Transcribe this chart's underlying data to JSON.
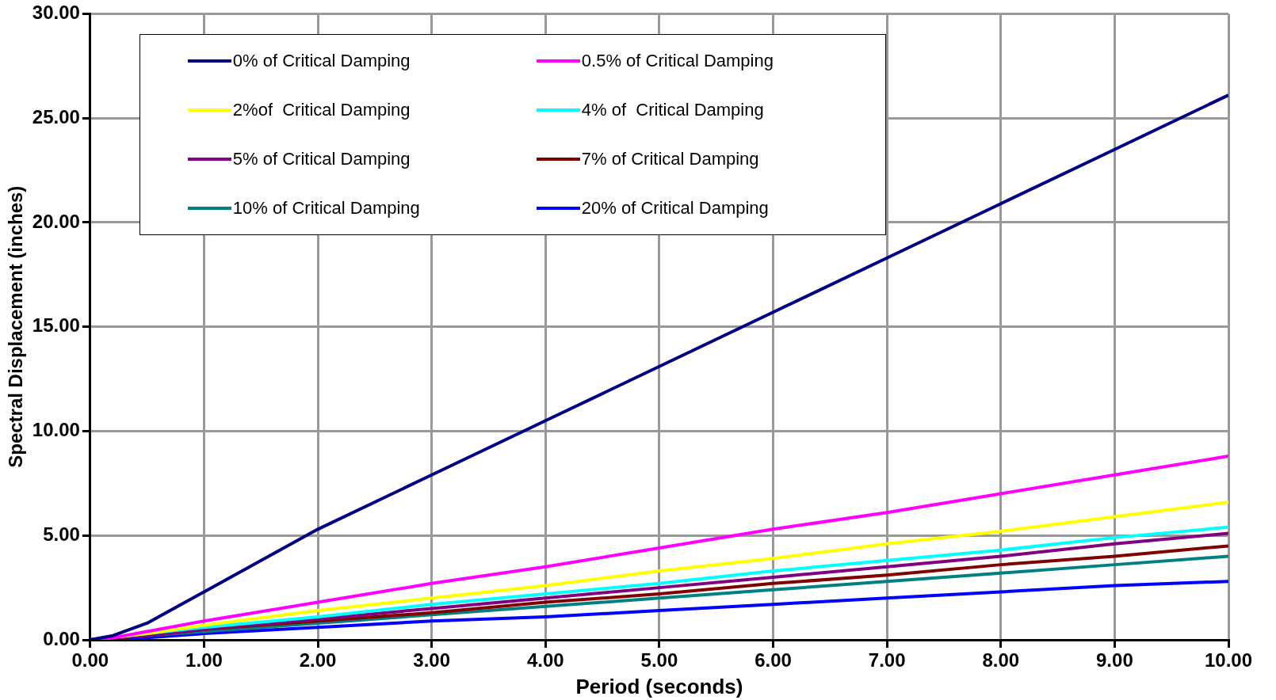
{
  "chart_data": {
    "type": "line",
    "xlabel": "Period (seconds)",
    "ylabel": "Spectral Displacement (inches)",
    "x": [
      0,
      0.2,
      0.5,
      1,
      2,
      3,
      4,
      5,
      6,
      7,
      8,
      9,
      10
    ],
    "xlim": [
      0,
      10
    ],
    "xticks": [
      {
        "value": 0,
        "label": "0.00"
      },
      {
        "value": 1,
        "label": "1.00"
      },
      {
        "value": 2,
        "label": "2.00"
      },
      {
        "value": 3,
        "label": "3.00"
      },
      {
        "value": 4,
        "label": "4.00"
      },
      {
        "value": 5,
        "label": "5.00"
      },
      {
        "value": 6,
        "label": "6.00"
      },
      {
        "value": 7,
        "label": "7.00"
      },
      {
        "value": 8,
        "label": "8.00"
      },
      {
        "value": 9,
        "label": "9.00"
      },
      {
        "value": 10,
        "label": "10.00"
      }
    ],
    "ylim": [
      0,
      30
    ],
    "yticks": [
      {
        "value": 0,
        "label": "0.00"
      },
      {
        "value": 5,
        "label": "5.00"
      },
      {
        "value": 10,
        "label": "10.00"
      },
      {
        "value": 15,
        "label": "15.00"
      },
      {
        "value": 20,
        "label": "20.00"
      },
      {
        "value": 25,
        "label": "25.00"
      },
      {
        "value": 30,
        "label": "30.00"
      }
    ],
    "grid": true,
    "legend": "top left",
    "marker": "none",
    "line_style": "solid",
    "series": [
      {
        "name": "0% of Critical Damping",
        "color": "#000080",
        "values": [
          0,
          0.2,
          0.8,
          2.3,
          5.3,
          7.9,
          10.5,
          13.1,
          15.7,
          18.3,
          20.9,
          23.5,
          26.1
        ]
      },
      {
        "name": "0.5% of Critical Damping",
        "color": "#ff00ff",
        "values": [
          0,
          0.1,
          0.4,
          0.9,
          1.8,
          2.7,
          3.5,
          4.4,
          5.3,
          6.1,
          7.0,
          7.9,
          8.8
        ]
      },
      {
        "name": "2%of  Critical Damping",
        "color": "#ffff00",
        "values": [
          0,
          null,
          0.3,
          0.7,
          1.4,
          2.0,
          2.6,
          3.3,
          3.9,
          4.6,
          5.2,
          5.9,
          6.6
        ]
      },
      {
        "name": "4% of  Critical Damping",
        "color": "#00ffff",
        "values": [
          0,
          null,
          null,
          0.6,
          1.1,
          1.7,
          2.2,
          2.7,
          3.3,
          3.8,
          4.3,
          4.9,
          5.4
        ]
      },
      {
        "name": "5% of Critical Damping",
        "color": "#800080",
        "values": [
          0,
          0.1,
          0.2,
          0.5,
          1.0,
          1.5,
          2.0,
          2.5,
          3.0,
          3.5,
          4.0,
          4.6,
          5.1
        ]
      },
      {
        "name": "7% of Critical Damping",
        "color": "#800000",
        "values": [
          0,
          null,
          0.2,
          0.5,
          0.9,
          1.3,
          1.8,
          2.2,
          2.7,
          3.1,
          3.6,
          4.0,
          4.5
        ]
      },
      {
        "name": "10% of Critical Damping",
        "color": "#008080",
        "values": [
          0,
          0.1,
          0.2,
          0.4,
          0.8,
          1.2,
          1.6,
          2.0,
          2.4,
          2.8,
          3.2,
          3.6,
          4.0
        ]
      },
      {
        "name": "20% of Critical Damping",
        "color": "#0000ff",
        "values": [
          0,
          0.05,
          0.1,
          0.3,
          0.6,
          0.9,
          1.1,
          1.4,
          1.7,
          2.0,
          2.3,
          2.6,
          2.8
        ]
      }
    ]
  }
}
